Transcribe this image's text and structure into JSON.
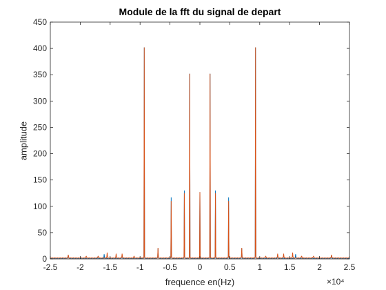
{
  "chart_data": {
    "type": "line",
    "title": "Module de la fft du signal de depart",
    "xlabel": "frequence en(Hz)",
    "ylabel": "amplitude",
    "x_exponent_label": "×10⁴",
    "xlim": [
      -25000,
      25000
    ],
    "ylim": [
      0,
      450
    ],
    "x_ticks": [
      -25000,
      -20000,
      -15000,
      -10000,
      -5000,
      0,
      5000,
      10000,
      15000,
      20000,
      25000
    ],
    "x_tick_labels": [
      "-2.5",
      "-2",
      "-1.5",
      "-1",
      "-0.5",
      "0",
      "0.5",
      "1",
      "1.5",
      "2",
      "2.5"
    ],
    "y_ticks": [
      0,
      50,
      100,
      150,
      200,
      250,
      300,
      350,
      400,
      450
    ],
    "y_tick_labels": [
      "0",
      "50",
      "100",
      "150",
      "200",
      "250",
      "300",
      "350",
      "400",
      "450"
    ],
    "grid": false,
    "box": true,
    "series": [
      {
        "color": "#0072BD",
        "baseline": 1.5,
        "peaks": [
          {
            "x": -22000,
            "y": 7
          },
          {
            "x": -16000,
            "y": 9
          },
          {
            "x": -13000,
            "y": 6
          },
          {
            "x": -9300,
            "y": 402
          },
          {
            "x": -7000,
            "y": 20
          },
          {
            "x": -4800,
            "y": 117
          },
          {
            "x": -2600,
            "y": 130
          },
          {
            "x": -1700,
            "y": 352
          },
          {
            "x": 0,
            "y": 127
          },
          {
            "x": 1700,
            "y": 352
          },
          {
            "x": 2600,
            "y": 130
          },
          {
            "x": 4800,
            "y": 117
          },
          {
            "x": 7000,
            "y": 20
          },
          {
            "x": 9300,
            "y": 402
          },
          {
            "x": 13000,
            "y": 6
          },
          {
            "x": 16000,
            "y": 9
          },
          {
            "x": 22000,
            "y": 7
          }
        ]
      },
      {
        "color": "#D95319",
        "baseline": 2,
        "peaks": [
          {
            "x": -22000,
            "y": 8
          },
          {
            "x": -19000,
            "y": 5
          },
          {
            "x": -17000,
            "y": 5
          },
          {
            "x": -15500,
            "y": 12
          },
          {
            "x": -14000,
            "y": 10
          },
          {
            "x": -13000,
            "y": 10
          },
          {
            "x": -11000,
            "y": 5
          },
          {
            "x": -9300,
            "y": 402
          },
          {
            "x": -7000,
            "y": 21
          },
          {
            "x": -4800,
            "y": 110
          },
          {
            "x": -2600,
            "y": 125
          },
          {
            "x": -1700,
            "y": 352
          },
          {
            "x": 0,
            "y": 127
          },
          {
            "x": 1700,
            "y": 352
          },
          {
            "x": 2600,
            "y": 125
          },
          {
            "x": 4800,
            "y": 110
          },
          {
            "x": 7000,
            "y": 21
          },
          {
            "x": 9300,
            "y": 402
          },
          {
            "x": 11000,
            "y": 5
          },
          {
            "x": 13000,
            "y": 10
          },
          {
            "x": 14000,
            "y": 10
          },
          {
            "x": 15500,
            "y": 12
          },
          {
            "x": 17000,
            "y": 5
          },
          {
            "x": 19000,
            "y": 5
          },
          {
            "x": 22000,
            "y": 8
          }
        ]
      }
    ]
  }
}
